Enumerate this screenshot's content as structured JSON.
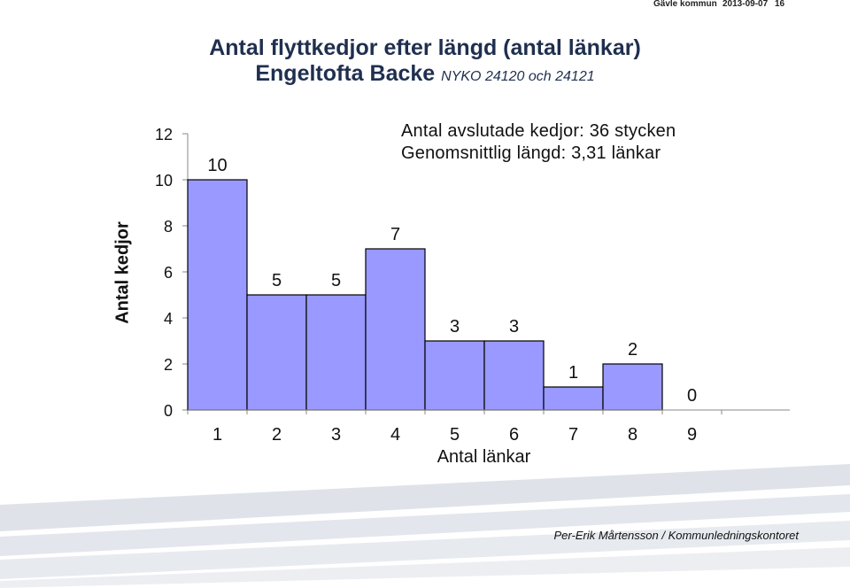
{
  "header": {
    "org": "Gävle kommun",
    "date": "2013-09-07",
    "page": "16"
  },
  "title_line1": "Antal flyttkedjor efter längd (antal länkar)",
  "title_line2_main": "Engeltofta Backe",
  "title_line2_sub": "NYKO 24120 och 24121",
  "info_line1": "Antal avslutade kedjor: 36 stycken",
  "info_line2": "Genomsnittlig längd: 3,31 länkar",
  "footer": "Per-Erik Mårtensson / Kommunledningskontoret",
  "colors": {
    "bar_fill": "#9999ff",
    "bar_stroke": "#000000",
    "stripe": "#c9d0da"
  },
  "chart_data": {
    "type": "bar",
    "categories": [
      "1",
      "2",
      "3",
      "4",
      "5",
      "6",
      "7",
      "8",
      "9"
    ],
    "values": [
      10,
      5,
      5,
      7,
      3,
      3,
      1,
      2,
      0
    ],
    "data_labels": [
      "10",
      "5",
      "5",
      "7",
      "3",
      "3",
      "1",
      "2",
      "0"
    ],
    "xlabel": "Antal länkar",
    "ylabel": "Antal kedjor",
    "ylim": [
      0,
      12
    ],
    "yticks": [
      "0",
      "2",
      "4",
      "6",
      "8",
      "10",
      "12"
    ],
    "grid": false,
    "legend": "none"
  }
}
